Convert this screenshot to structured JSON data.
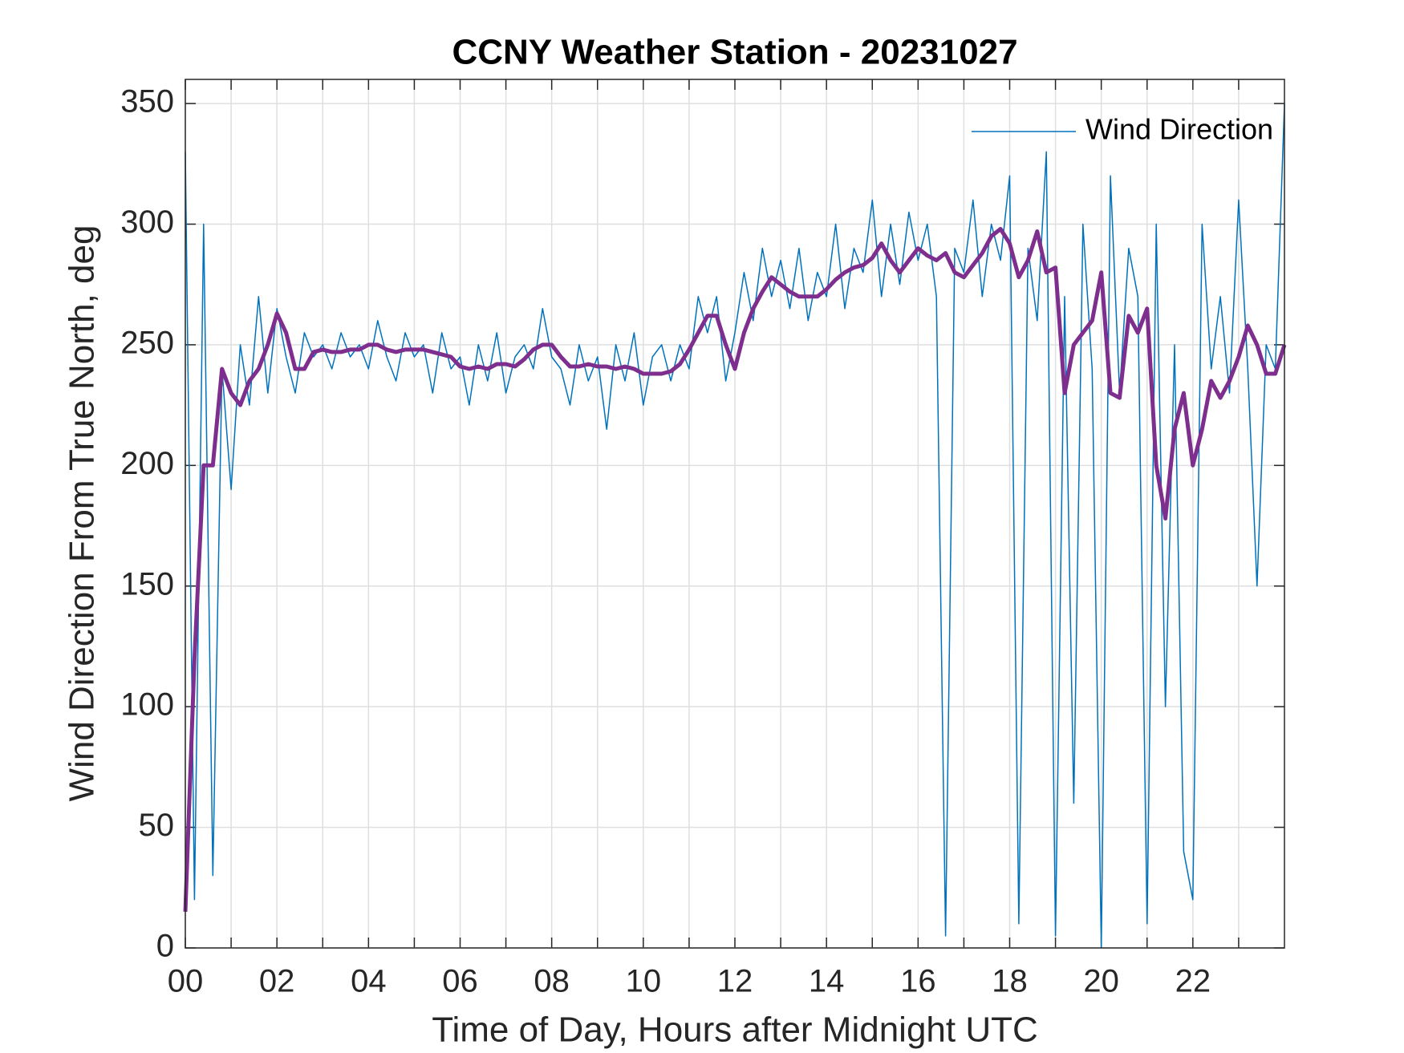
{
  "chart_data": {
    "type": "line",
    "title": "CCNY Weather Station - 20231027",
    "xlabel": "Time of Day, Hours after Midnight UTC",
    "ylabel": "Wind Direction From True North, deg",
    "xlim": [
      0,
      24
    ],
    "ylim": [
      0,
      360
    ],
    "xticks": [
      {
        "value": 0,
        "label": "00"
      },
      {
        "value": 2,
        "label": "02"
      },
      {
        "value": 4,
        "label": "04"
      },
      {
        "value": 6,
        "label": "06"
      },
      {
        "value": 8,
        "label": "08"
      },
      {
        "value": 10,
        "label": "10"
      },
      {
        "value": 12,
        "label": "12"
      },
      {
        "value": 14,
        "label": "14"
      },
      {
        "value": 16,
        "label": "16"
      },
      {
        "value": 18,
        "label": "18"
      },
      {
        "value": 20,
        "label": "20"
      },
      {
        "value": 22,
        "label": "22"
      }
    ],
    "x_minor_ticks": [
      1,
      3,
      5,
      7,
      9,
      11,
      13,
      15,
      17,
      19,
      21,
      23
    ],
    "yticks": [
      0,
      50,
      100,
      150,
      200,
      250,
      300,
      350
    ],
    "grid": true,
    "legend": "northeast",
    "x": [
      0,
      0.2,
      0.4,
      0.6,
      0.8,
      1,
      1.2,
      1.4,
      1.6,
      1.8,
      2,
      2.2,
      2.4,
      2.6,
      2.8,
      3,
      3.2,
      3.4,
      3.6,
      3.8,
      4,
      4.2,
      4.4,
      4.6,
      4.8,
      5,
      5.2,
      5.4,
      5.6,
      5.8,
      6,
      6.2,
      6.4,
      6.6,
      6.8,
      7,
      7.2,
      7.4,
      7.6,
      7.8,
      8,
      8.2,
      8.4,
      8.6,
      8.8,
      9,
      9.2,
      9.4,
      9.6,
      9.8,
      10,
      10.2,
      10.4,
      10.6,
      10.8,
      11,
      11.2,
      11.4,
      11.6,
      11.8,
      12,
      12.2,
      12.4,
      12.6,
      12.8,
      13,
      13.2,
      13.4,
      13.6,
      13.8,
      14,
      14.2,
      14.4,
      14.6,
      14.8,
      15,
      15.2,
      15.4,
      15.6,
      15.8,
      16,
      16.2,
      16.4,
      16.6,
      16.8,
      17,
      17.2,
      17.4,
      17.6,
      17.8,
      18,
      18.2,
      18.4,
      18.6,
      18.8,
      19,
      19.2,
      19.4,
      19.6,
      19.8,
      20,
      20.2,
      20.4,
      20.6,
      20.8,
      21,
      21.2,
      21.4,
      21.6,
      21.8,
      22,
      22.2,
      22.4,
      22.6,
      22.8,
      23,
      23.2,
      23.4,
      23.6,
      23.8,
      24
    ],
    "series": [
      {
        "name": "Wind Direction",
        "color": "#0072bd",
        "width": 1.5,
        "values": [
          330,
          20,
          300,
          30,
          240,
          190,
          250,
          225,
          270,
          230,
          265,
          245,
          230,
          255,
          245,
          250,
          240,
          255,
          245,
          250,
          240,
          260,
          245,
          235,
          255,
          245,
          250,
          230,
          255,
          240,
          245,
          225,
          250,
          235,
          255,
          230,
          245,
          250,
          240,
          265,
          245,
          240,
          225,
          250,
          235,
          245,
          215,
          250,
          235,
          255,
          225,
          245,
          250,
          235,
          250,
          240,
          270,
          255,
          270,
          235,
          255,
          280,
          260,
          290,
          270,
          285,
          265,
          290,
          260,
          280,
          270,
          300,
          265,
          290,
          280,
          310,
          270,
          300,
          275,
          305,
          285,
          300,
          270,
          5,
          290,
          280,
          310,
          270,
          300,
          285,
          320,
          10,
          290,
          260,
          330,
          5,
          270,
          60,
          300,
          240,
          0,
          320,
          230,
          290,
          270,
          10,
          300,
          100,
          250,
          40,
          20,
          300,
          240,
          270,
          230,
          310,
          240,
          150,
          250,
          240,
          350
        ]
      },
      {
        "color": "#7e2f8e",
        "width": 5,
        "values": [
          15,
          120,
          200,
          200,
          240,
          230,
          225,
          235,
          240,
          250,
          263,
          255,
          240,
          240,
          247,
          248,
          247,
          247,
          248,
          248,
          250,
          250,
          248,
          247,
          248,
          248,
          248,
          247,
          246,
          245,
          241,
          240,
          241,
          240,
          242,
          242,
          241,
          244,
          248,
          250,
          250,
          245,
          241,
          241,
          242,
          241,
          241,
          240,
          241,
          240,
          238,
          238,
          238,
          239,
          242,
          248,
          255,
          262,
          262,
          250,
          240,
          255,
          265,
          272,
          278,
          275,
          272,
          270,
          270,
          270,
          273,
          277,
          280,
          282,
          283,
          286,
          292,
          285,
          280,
          285,
          290,
          287,
          285,
          288,
          280,
          278,
          283,
          288,
          295,
          298,
          292,
          278,
          285,
          297,
          280,
          282,
          230,
          250,
          255,
          260,
          280,
          230,
          228,
          262,
          255,
          265,
          200,
          178,
          215,
          230,
          200,
          215,
          235,
          228,
          235,
          245,
          258,
          250,
          238,
          238,
          250
        ]
      }
    ]
  }
}
